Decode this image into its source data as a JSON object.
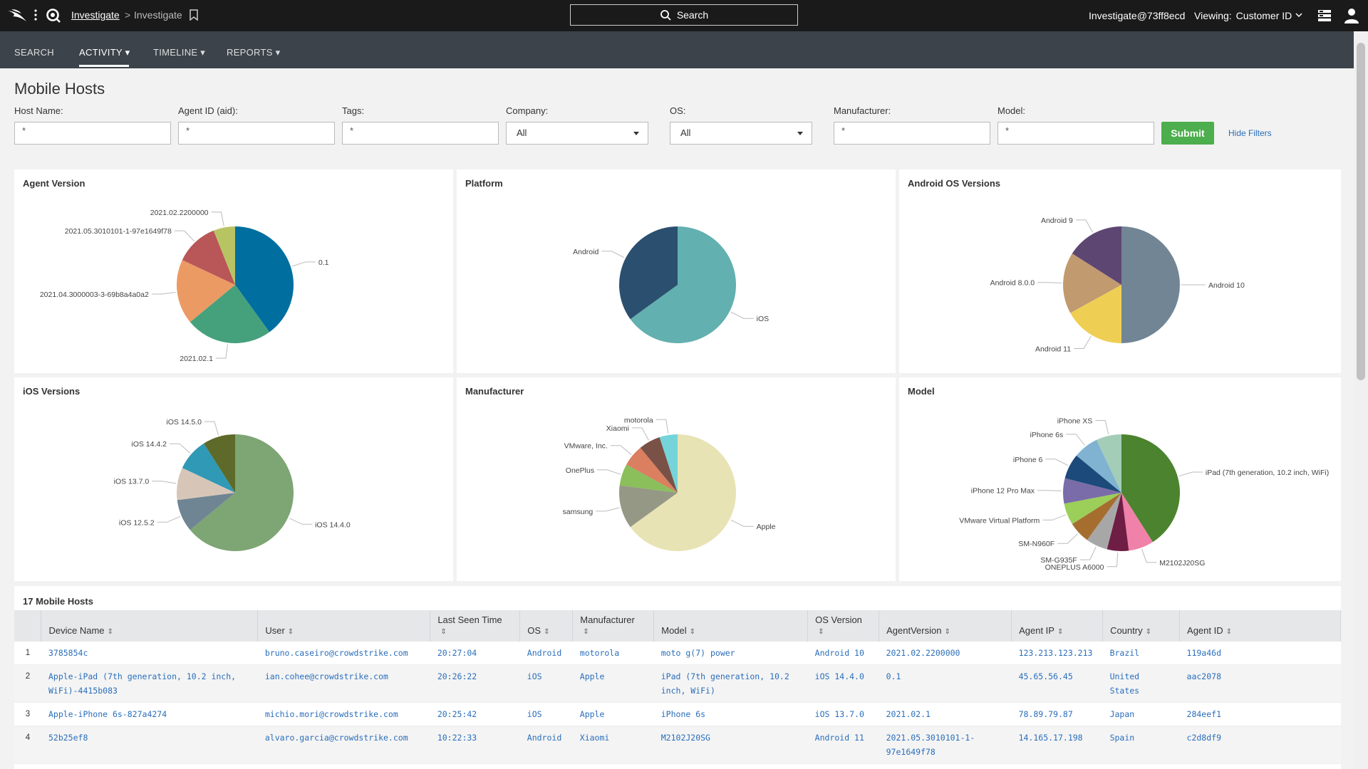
{
  "header": {
    "breadcrumb_link": "Investigate",
    "breadcrumb_sep": ">",
    "breadcrumb_current": "Investigate",
    "search_label": "Search",
    "user": "Investigate@73ff8ecd",
    "viewing_label": "Viewing:",
    "viewing_value": "Customer ID"
  },
  "nav": {
    "items": [
      {
        "label": "SEARCH"
      },
      {
        "label": "ACTIVITY ▾"
      },
      {
        "label": "TIMELINE ▾"
      },
      {
        "label": "REPORTS ▾"
      }
    ],
    "active": "ACTIVITY"
  },
  "page": {
    "title": "Mobile Hosts",
    "filters": {
      "host_name": {
        "label": "Host Name:",
        "value": "*"
      },
      "agent_id": {
        "label": "Agent ID (aid):",
        "value": "*"
      },
      "tags": {
        "label": "Tags:",
        "value": "*"
      },
      "company": {
        "label": "Company:",
        "value": "All"
      },
      "os": {
        "label": "OS:",
        "value": "All"
      },
      "manufacturer": {
        "label": "Manufacturer:",
        "value": "*"
      },
      "model": {
        "label": "Model:",
        "value": "*"
      }
    },
    "submit_label": "Submit",
    "hide_filters_label": "Hide Filters"
  },
  "chart_data": [
    {
      "type": "pie",
      "title": "Agent Version",
      "labels": [
        "0.1",
        "2021.02.1",
        "2021.04.3000003-3-69b8a4a0a2",
        "2021.05.3010101-1-97e1649f78",
        "2021.02.2200000"
      ],
      "values": [
        40,
        24,
        18,
        12,
        6
      ],
      "colors": [
        "#006e9f",
        "#45a17c",
        "#ec9a63",
        "#b85658",
        "#b8c464"
      ]
    },
    {
      "type": "pie",
      "title": "Platform",
      "labels": [
        "iOS",
        "Android"
      ],
      "values": [
        65,
        35
      ],
      "colors": [
        "#62b0af",
        "#2b4f6f"
      ]
    },
    {
      "type": "pie",
      "title": "Android OS Versions",
      "labels": [
        "Android 10",
        "Android 11",
        "Android 8.0.0",
        "Android 9"
      ],
      "values": [
        50,
        17,
        17,
        16
      ],
      "colors": [
        "#718595",
        "#efcf53",
        "#c19a6f",
        "#5e4672"
      ]
    },
    {
      "type": "pie",
      "title": "iOS Versions",
      "labels": [
        "iOS 14.4.0",
        "iOS 12.5.2",
        "iOS 13.7.0",
        "iOS 14.4.2",
        "iOS 14.5.0"
      ],
      "values": [
        64,
        9,
        9,
        9,
        9
      ],
      "colors": [
        "#7ea574",
        "#6f8593",
        "#d7c6b8",
        "#3099b5",
        "#5d6a29"
      ]
    },
    {
      "type": "pie",
      "title": "Manufacturer",
      "labels": [
        "Apple",
        "samsung",
        "OnePlus",
        "VMware, Inc.",
        "Xiaomi",
        "motorola"
      ],
      "values": [
        65,
        12,
        6,
        6,
        6,
        5
      ],
      "colors": [
        "#e8e3b4",
        "#969886",
        "#8abf5b",
        "#da7f60",
        "#7a5146",
        "#74d4d9"
      ]
    },
    {
      "type": "pie",
      "title": "Model",
      "labels": [
        "iPad (7th generation, 10.2 inch, WiFi)",
        "M2102J20SG",
        "ONEPLUS A6000",
        "SM-G935F",
        "SM-N960F",
        "VMware Virtual Platform",
        "iPhone 12 Pro Max",
        "iPhone 6",
        "iPhone 6s",
        "iPhone XS"
      ],
      "values": [
        41,
        7,
        6,
        6,
        6,
        6,
        7,
        7,
        7,
        7
      ],
      "colors": [
        "#4b832e",
        "#f081a8",
        "#6e1d44",
        "#a7a7a7",
        "#a56e2f",
        "#9bcf59",
        "#7a6ca8",
        "#1c4a7b",
        "#80b3d1",
        "#a4cdb8"
      ]
    }
  ],
  "table": {
    "title": "17 Mobile Hosts",
    "columns": [
      {
        "l1": "",
        "l2": ""
      },
      {
        "l1": "",
        "l2": "Device Name"
      },
      {
        "l1": "",
        "l2": "User"
      },
      {
        "l1": "Last Seen Time",
        "l2": ""
      },
      {
        "l1": "",
        "l2": "OS"
      },
      {
        "l1": "Manufacturer",
        "l2": ""
      },
      {
        "l1": "",
        "l2": "Model"
      },
      {
        "l1": "OS Version",
        "l2": ""
      },
      {
        "l1": "",
        "l2": "AgentVersion"
      },
      {
        "l1": "",
        "l2": "Agent IP"
      },
      {
        "l1": "",
        "l2": "Country"
      },
      {
        "l1": "",
        "l2": "Agent ID"
      }
    ],
    "rows": [
      [
        "1",
        "3785854c",
        "bruno.caseiro@crowdstrike.com",
        "20:27:04",
        "Android",
        "motorola",
        "moto g(7) power",
        "Android 10",
        "2021.02.2200000",
        "123.213.123.213",
        "Brazil",
        "119a46d"
      ],
      [
        "2",
        "Apple-iPad (7th generation, 10.2 inch, WiFi)-4415b083",
        "ian.cohee@crowdstrike.com",
        "20:26:22",
        "iOS",
        "Apple",
        "iPad (7th generation, 10.2 inch, WiFi)",
        "iOS 14.4.0",
        "0.1",
        "45.65.56.45",
        "United States",
        "aac2078"
      ],
      [
        "3",
        "Apple-iPhone 6s-827a4274",
        "michio.mori@crowdstrike.com",
        "20:25:42",
        "iOS",
        "Apple",
        "iPhone 6s",
        "iOS 13.7.0",
        "2021.02.1",
        "78.89.79.87",
        "Japan",
        "284eef1"
      ],
      [
        "4",
        "52b25ef8",
        "alvaro.garcia@crowdstrike.com",
        "10:22:33",
        "Android",
        "Xiaomi",
        "M2102J20SG",
        "Android 11",
        "2021.05.3010101-1-97e1649f78",
        "14.165.17.198",
        "Spain",
        "c2d8df9"
      ]
    ]
  }
}
